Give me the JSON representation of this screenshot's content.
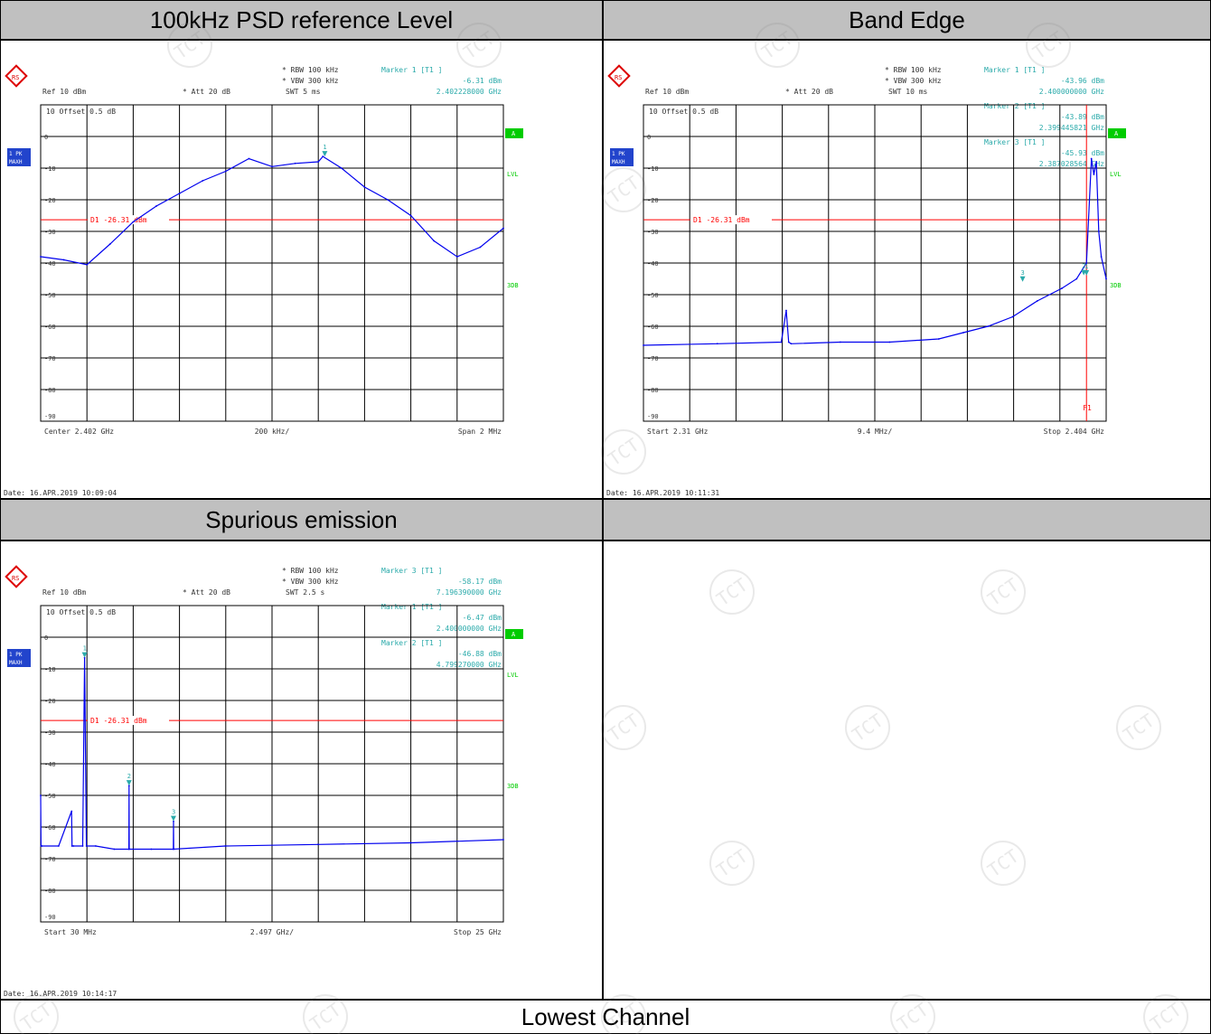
{
  "headers": [
    "100kHz PSD reference Level",
    "Band Edge",
    "Spurious emission",
    ""
  ],
  "footer": "Lowest Channel",
  "colors": {
    "trace": "#0000ee",
    "limit": "#ff0000",
    "marker": "#2aaaaa",
    "green": "#00cc00"
  },
  "chart_data": [
    {
      "type": "line",
      "title": "100kHz PSD reference Level",
      "settings": {
        "rbw": "RBW  100 kHz",
        "vbw": "VBW  300 kHz",
        "swt": "SWT  5 ms",
        "ref": "Ref  10 dBm",
        "att": "Att  20 dB",
        "offset": "Offset  0.5 dB"
      },
      "markers_text": [
        "Marker 1 [T1 ]",
        "-6.31 dBm",
        "2.402228000 GHz"
      ],
      "markers": [
        {
          "label": "1",
          "x": 2.402228,
          "y": -6.31
        }
      ],
      "limit": {
        "label": "D1 -26.31 dBm",
        "y": -26.31
      },
      "x_start": 2.401,
      "x_stop": 2.403,
      "xlabels": [
        "Center  2.402 GHz",
        "200 kHz/",
        "Span  2 MHz"
      ],
      "ylim": [
        -90,
        10
      ],
      "yticks": [
        "10",
        "0",
        "-10",
        "-20",
        "-30",
        "-40",
        "-50",
        "-60",
        "-70",
        "-80",
        "-90"
      ],
      "side_labels": [
        "A",
        "LVL",
        "3DB"
      ],
      "badges": [
        "1 PK",
        "MAXH"
      ],
      "date": "Date: 16.APR.2019  10:09:04",
      "series": [
        {
          "x": [
            2.401,
            2.4011,
            2.4012,
            2.4013,
            2.4014,
            2.4015,
            2.4016,
            2.4017,
            2.4018,
            2.4019,
            2.402,
            2.4021,
            2.4022,
            2.40222,
            2.4023,
            2.4024,
            2.4025,
            2.4026,
            2.4027,
            2.4028,
            2.4029,
            2.403
          ],
          "y": [
            -38,
            -39,
            -40.5,
            -34,
            -27,
            -22,
            -18,
            -14,
            -11,
            -7,
            -9.5,
            -8.5,
            -8,
            -6.3,
            -10,
            -16,
            -20,
            -25,
            -33,
            -38,
            -35,
            -29
          ]
        }
      ]
    },
    {
      "type": "line",
      "title": "Band Edge",
      "settings": {
        "rbw": "RBW  100 kHz",
        "vbw": "VBW  300 kHz",
        "swt": "SWT  10 ms",
        "ref": "Ref  10 dBm",
        "att": "Att  20 dB",
        "offset": "Offset  0.5 dB"
      },
      "markers_text": [
        "Marker 1 [T1 ]",
        "-43.96 dBm",
        "2.400000000 GHz",
        "Marker 2 [T1 ]",
        "-43.89 dBm",
        "2.399445821 GHz",
        "Marker 3 [T1 ]",
        "-45.93 dBm",
        "2.387028564 GHz"
      ],
      "markers": [
        {
          "label": "1",
          "x": 2.4,
          "y": -43.96
        },
        {
          "label": "2",
          "x": 2.399445821,
          "y": -43.89
        },
        {
          "label": "3",
          "x": 2.387028564,
          "y": -45.93
        }
      ],
      "limit": {
        "label": "D1 -26.31 dBm",
        "y": -26.31
      },
      "vline": {
        "label": "F1",
        "x": 2.4
      },
      "x_start": 2.31,
      "x_stop": 2.404,
      "xlabels": [
        "Start  2.31 GHz",
        "9.4 MHz/",
        "Stop  2.404 GHz"
      ],
      "ylim": [
        -90,
        10
      ],
      "yticks": [
        "10",
        "0",
        "-10",
        "-20",
        "-30",
        "-40",
        "-50",
        "-60",
        "-70",
        "-80",
        "-90"
      ],
      "side_labels": [
        "A",
        "LVL",
        "3DB"
      ],
      "badges": [
        "1 PK",
        "MAXH"
      ],
      "date": "Date: 16.APR.2019  10:11:31",
      "series": [
        {
          "x": [
            2.31,
            2.325,
            2.338,
            2.339,
            2.3395,
            2.34,
            2.35,
            2.36,
            2.37,
            2.375,
            2.38,
            2.385,
            2.39,
            2.395,
            2.398,
            2.4,
            2.401,
            2.4015,
            2.402,
            2.4025,
            2.403,
            2.404
          ],
          "y": [
            -66,
            -65.5,
            -65,
            -55,
            -65,
            -65.5,
            -65,
            -65,
            -64,
            -62,
            -60,
            -57,
            -52,
            -48,
            -45,
            -40,
            -7,
            -12,
            -8,
            -30,
            -38,
            -45
          ]
        }
      ]
    },
    {
      "type": "line",
      "title": "Spurious emission",
      "settings": {
        "rbw": "RBW  100 kHz",
        "vbw": "VBW  300 kHz",
        "swt": "SWT  2.5 s",
        "ref": "Ref  10 dBm",
        "att": "Att  20 dB",
        "offset": "Offset  0.5 dB"
      },
      "markers_text": [
        "Marker 3 [T1 ]",
        "-58.17 dBm",
        "7.196390000 GHz",
        "Marker 1 [T1 ]",
        "-6.47 dBm",
        "2.400000000 GHz",
        "Marker 2 [T1 ]",
        "-46.88 dBm",
        "4.799270000 GHz"
      ],
      "markers": [
        {
          "label": "1",
          "x": 2.4,
          "y": -6.47
        },
        {
          "label": "2",
          "x": 4.79927,
          "y": -46.88
        },
        {
          "label": "3",
          "x": 7.19639,
          "y": -58.17
        }
      ],
      "limit": {
        "label": "D1 -26.31 dBm",
        "y": -26.31
      },
      "x_start": 0.03,
      "x_stop": 25,
      "xlabels": [
        "Start  30 MHz",
        "2.497 GHz/",
        "Stop  25 GHz"
      ],
      "ylim": [
        -90,
        10
      ],
      "yticks": [
        "10",
        "0",
        "-10",
        "-20",
        "-30",
        "-40",
        "-50",
        "-60",
        "-70",
        "-80",
        "-90"
      ],
      "side_labels": [
        "A",
        "LVL",
        "3DB"
      ],
      "badges": [
        "1 PK",
        "MAXH"
      ],
      "date": "Date: 16.APR.2019  10:14:17",
      "series": [
        {
          "x": [
            0.03,
            0.05,
            0.1,
            1.0,
            1.7,
            1.72,
            1.8,
            2.3,
            2.4,
            2.5,
            3.0,
            4.0,
            4.79,
            4.8,
            4.81,
            6.0,
            7.19,
            7.2,
            7.21,
            10,
            15,
            20,
            25
          ],
          "y": [
            -50,
            -66,
            -66,
            -66,
            -55,
            -66,
            -66,
            -66,
            -6.5,
            -66,
            -66,
            -67,
            -67,
            -46.9,
            -67,
            -67,
            -67,
            -58.2,
            -67,
            -66,
            -65.5,
            -65,
            -64
          ]
        }
      ]
    }
  ]
}
